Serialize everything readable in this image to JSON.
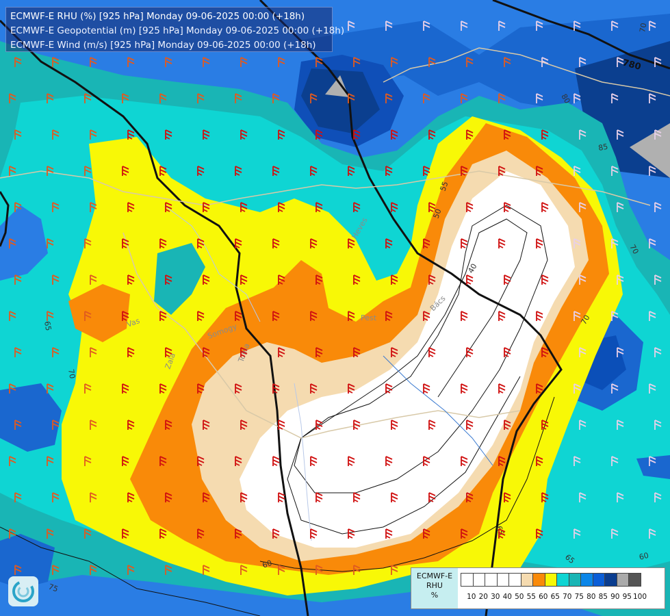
{
  "header": {
    "line1": "ECMWF-E RHU (%) [925 hPa] Monday 09-06-2025 00:00 (+18h)",
    "line2": "ECMWF-E Geopotential (m) [925 hPa] Monday 09-06-2025 00:00 (+18h)",
    "line3": "ECMWF-E Wind (m/s) [925 hPa] Monday 09-06-2025 00:00 (+18h)"
  },
  "legend": {
    "title_line1": "ECMWF-E",
    "title_line2": "RHU",
    "title_line3": "%",
    "values": [
      "10",
      "20",
      "30",
      "40",
      "50",
      "55",
      "60",
      "65",
      "70",
      "75",
      "80",
      "85",
      "90",
      "95",
      "100"
    ],
    "colors": [
      "#ffffff",
      "#ffffff",
      "#ffffff",
      "#ffffff",
      "#ffffff",
      "#f5dbb0",
      "#f98a09",
      "#f8f806",
      "#0fd5d3",
      "#19b5b5",
      "#0b86e8",
      "#0b5ed7",
      "#0a3d8f",
      "#aaaaaa",
      "#555555"
    ]
  },
  "isoline_labels": {
    "rh": [
      "55",
      "50",
      "40",
      "70",
      "65",
      "70",
      "75",
      "65",
      "60",
      "60",
      "70",
      "80",
      "85",
      "75",
      "70",
      "70",
      "65",
      "60"
    ],
    "geopotential": "780"
  },
  "place_labels": [
    "Pest",
    "Vas",
    "Zala",
    "Somogy",
    "Tolna",
    "Heves",
    "Bács",
    "Bo"
  ],
  "logo_icon": "ecmwf-swirl-logo-icon"
}
